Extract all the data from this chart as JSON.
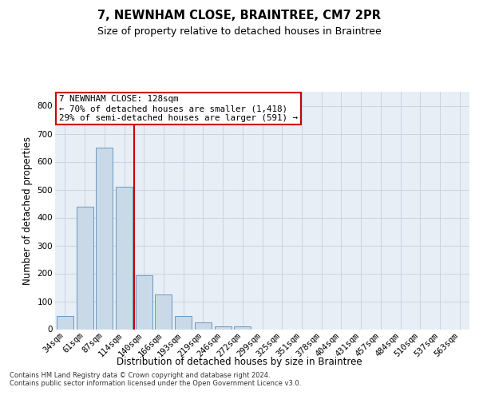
{
  "title": "7, NEWNHAM CLOSE, BRAINTREE, CM7 2PR",
  "subtitle": "Size of property relative to detached houses in Braintree",
  "xlabel": "Distribution of detached houses by size in Braintree",
  "ylabel": "Number of detached properties",
  "bin_labels": [
    "34sqm",
    "61sqm",
    "87sqm",
    "114sqm",
    "140sqm",
    "166sqm",
    "193sqm",
    "219sqm",
    "246sqm",
    "272sqm",
    "299sqm",
    "325sqm",
    "351sqm",
    "378sqm",
    "404sqm",
    "431sqm",
    "457sqm",
    "484sqm",
    "510sqm",
    "537sqm",
    "563sqm"
  ],
  "bar_heights": [
    48,
    438,
    651,
    510,
    193,
    125,
    48,
    25,
    10,
    10,
    0,
    0,
    0,
    0,
    0,
    0,
    0,
    0,
    0,
    0,
    0
  ],
  "bar_color": "#c9d9e8",
  "bar_edge_color": "#5b8db8",
  "grid_color": "#c8d4e4",
  "background_color": "#e8eef5",
  "red_line_color": "#cc0000",
  "red_line_bin": 3.5,
  "annotation_text": "7 NEWNHAM CLOSE: 128sqm\n← 70% of detached houses are smaller (1,418)\n29% of semi-detached houses are larger (591) →",
  "annotation_box_color": "#ffffff",
  "annotation_box_edge": "#cc0000",
  "footer_text": "Contains HM Land Registry data © Crown copyright and database right 2024.\nContains public sector information licensed under the Open Government Licence v3.0.",
  "ylim": [
    0,
    850
  ],
  "yticks": [
    0,
    100,
    200,
    300,
    400,
    500,
    600,
    700,
    800
  ],
  "title_fontsize": 10.5,
  "subtitle_fontsize": 9,
  "ylabel_fontsize": 8.5,
  "xlabel_fontsize": 8.5,
  "tick_fontsize": 7.5,
  "annotation_fontsize": 7.8,
  "footer_fontsize": 6.0
}
